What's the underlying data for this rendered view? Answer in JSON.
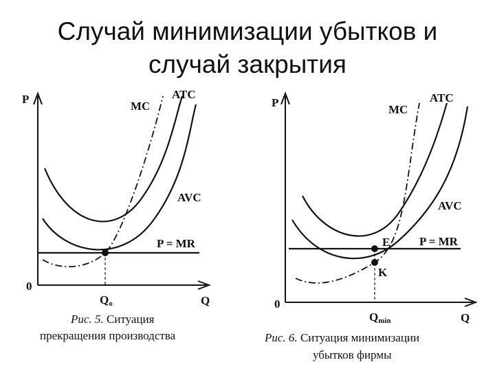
{
  "title": [
    "Случай минимизации убытков и",
    "случай закрытия"
  ],
  "figures": [
    {
      "axis_y": "P",
      "axis_x": "Q",
      "origin": "0",
      "curves": {
        "mc": "MC",
        "atc": "ATC",
        "avc": "AVC",
        "price": "P = MR"
      },
      "quantity": {
        "symbol": "Q",
        "subscript": "o"
      },
      "caption": {
        "number": "Рис. 5.",
        "lines": [
          "Ситуация",
          "прекращения производства"
        ]
      }
    },
    {
      "axis_y": "P",
      "axis_x": "Q",
      "origin": "0",
      "curves": {
        "mc": "MC",
        "atc": "ATC",
        "avc": "AVC",
        "price": "P = MR"
      },
      "points": [
        "E",
        "K"
      ],
      "quantity": {
        "symbol": "Q",
        "subscript": "min"
      },
      "caption": {
        "number": "Рис. 6.",
        "lines": [
          "Ситуация минимизации",
          "убытков фирмы"
        ]
      }
    }
  ]
}
